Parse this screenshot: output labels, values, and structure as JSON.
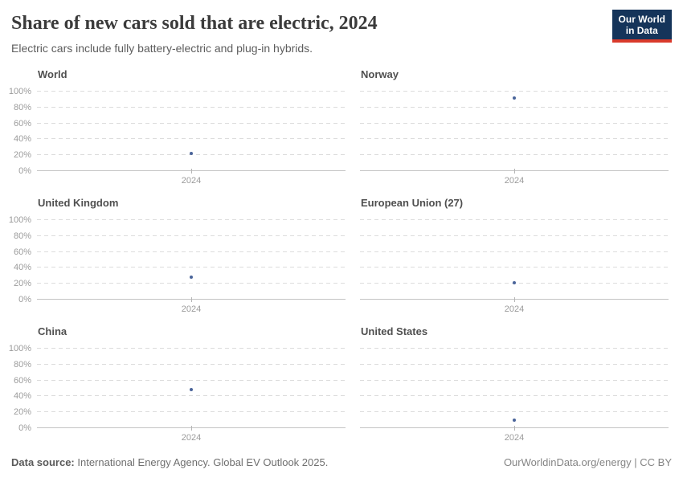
{
  "header": {
    "title": "Share of new cars sold that are electric, 2024",
    "subtitle": "Electric cars include fully battery-electric and plug-in hybrids.",
    "logo_line1": "Our World",
    "logo_line2": "in Data"
  },
  "chart_data": {
    "type": "scatter",
    "x": [
      2024
    ],
    "x_tick_label": "2024",
    "facets": [
      {
        "name": "World",
        "value": 22
      },
      {
        "name": "Norway",
        "value": 92
      },
      {
        "name": "United Kingdom",
        "value": 28
      },
      {
        "name": "European Union (27)",
        "value": 21
      },
      {
        "name": "China",
        "value": 48
      },
      {
        "name": "United States",
        "value": 10
      }
    ],
    "y_ticks": [
      {
        "label": "100%",
        "value": 100
      },
      {
        "label": "80%",
        "value": 80
      },
      {
        "label": "60%",
        "value": 60
      },
      {
        "label": "40%",
        "value": 40
      },
      {
        "label": "20%",
        "value": 20
      },
      {
        "label": "0%",
        "value": 0
      }
    ],
    "ylim": [
      0,
      100
    ],
    "grid": "dashed-horizontal",
    "legend": "none",
    "point_color": "#4a649a"
  },
  "footer": {
    "source_label": "Data source:",
    "source_text": " International Energy Agency. Global EV Outlook 2025.",
    "link_text": "OurWorldinData.org/energy | CC BY"
  },
  "colors": {
    "accent_point": "#4a649a",
    "logo_bg": "#15345a",
    "logo_stripe": "#d93a2b",
    "gridline": "#dcdcdc",
    "axis": "#c4c4c4"
  }
}
